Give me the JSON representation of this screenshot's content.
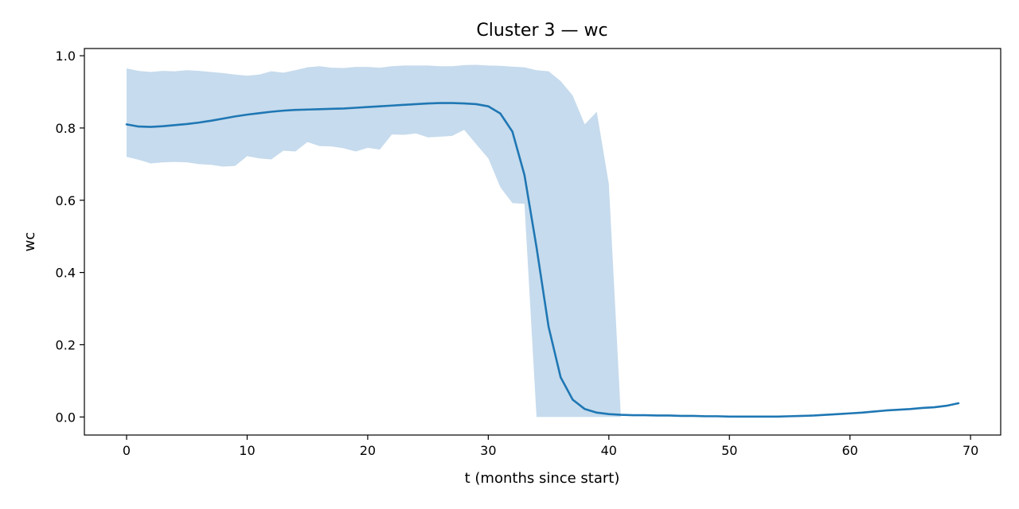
{
  "chart_data": {
    "type": "line",
    "title": "Cluster 3 — wc",
    "xlabel": "t (months since start)",
    "ylabel": "wc",
    "xlim": [
      -3.5,
      72.5
    ],
    "ylim": [
      -0.05,
      1.02
    ],
    "xticks": [
      0,
      10,
      20,
      30,
      40,
      50,
      60,
      70
    ],
    "yticks": [
      0.0,
      0.2,
      0.4,
      0.6,
      0.8,
      1.0
    ],
    "xtick_labels": [
      "0",
      "10",
      "20",
      "30",
      "40",
      "50",
      "60",
      "70"
    ],
    "ytick_labels": [
      "0.0",
      "0.2",
      "0.4",
      "0.6",
      "0.8",
      "1.0"
    ],
    "grid": false,
    "series": [
      {
        "role": "mean",
        "color": "#1f77b4",
        "x": [
          0,
          1,
          2,
          3,
          4,
          5,
          6,
          7,
          8,
          9,
          10,
          11,
          12,
          13,
          14,
          15,
          16,
          17,
          18,
          19,
          20,
          21,
          22,
          23,
          24,
          25,
          26,
          27,
          28,
          29,
          30,
          31,
          32,
          33,
          34,
          35,
          36,
          37,
          38,
          39,
          40,
          41,
          42,
          43,
          44,
          45,
          46,
          47,
          48,
          49,
          50,
          51,
          52,
          53,
          54,
          55,
          56,
          57,
          58,
          59,
          60,
          61,
          62,
          63,
          64,
          65,
          66,
          67,
          68,
          69
        ],
        "values": [
          0.81,
          0.804,
          0.803,
          0.805,
          0.808,
          0.811,
          0.815,
          0.82,
          0.826,
          0.832,
          0.837,
          0.841,
          0.845,
          0.848,
          0.85,
          0.851,
          0.852,
          0.853,
          0.854,
          0.856,
          0.858,
          0.86,
          0.862,
          0.864,
          0.866,
          0.868,
          0.869,
          0.869,
          0.868,
          0.866,
          0.86,
          0.84,
          0.79,
          0.67,
          0.47,
          0.25,
          0.11,
          0.048,
          0.022,
          0.012,
          0.008,
          0.006,
          0.005,
          0.005,
          0.004,
          0.004,
          0.003,
          0.003,
          0.002,
          0.002,
          0.001,
          0.001,
          0.001,
          0.001,
          0.001,
          0.002,
          0.003,
          0.004,
          0.006,
          0.008,
          0.01,
          0.012,
          0.015,
          0.018,
          0.02,
          0.022,
          0.025,
          0.027,
          0.031,
          0.038
        ]
      },
      {
        "role": "band",
        "color": "#c6dbed",
        "x": [
          0,
          1,
          2,
          3,
          4,
          5,
          6,
          7,
          8,
          9,
          10,
          11,
          12,
          13,
          14,
          15,
          16,
          17,
          18,
          19,
          20,
          21,
          22,
          23,
          24,
          25,
          26,
          27,
          28,
          29,
          30,
          31,
          32,
          33,
          34,
          35,
          36,
          37,
          38,
          39,
          40,
          41
        ],
        "upper": [
          0.965,
          0.958,
          0.955,
          0.958,
          0.957,
          0.96,
          0.958,
          0.955,
          0.952,
          0.948,
          0.945,
          0.948,
          0.957,
          0.953,
          0.96,
          0.968,
          0.971,
          0.967,
          0.966,
          0.969,
          0.969,
          0.967,
          0.971,
          0.973,
          0.973,
          0.973,
          0.971,
          0.971,
          0.974,
          0.975,
          0.973,
          0.972,
          0.97,
          0.968,
          0.96,
          0.957,
          0.93,
          0.89,
          0.81,
          0.845,
          0.645,
          0.0
        ],
        "lower": [
          0.72,
          0.712,
          0.702,
          0.705,
          0.706,
          0.705,
          0.7,
          0.698,
          0.693,
          0.695,
          0.722,
          0.716,
          0.713,
          0.737,
          0.735,
          0.761,
          0.75,
          0.749,
          0.744,
          0.735,
          0.745,
          0.74,
          0.782,
          0.781,
          0.785,
          0.774,
          0.776,
          0.778,
          0.795,
          0.755,
          0.716,
          0.636,
          0.592,
          0.59,
          0.0,
          0.0,
          0.0,
          0.0,
          0.0,
          0.0,
          0.0,
          0.0
        ]
      }
    ]
  }
}
